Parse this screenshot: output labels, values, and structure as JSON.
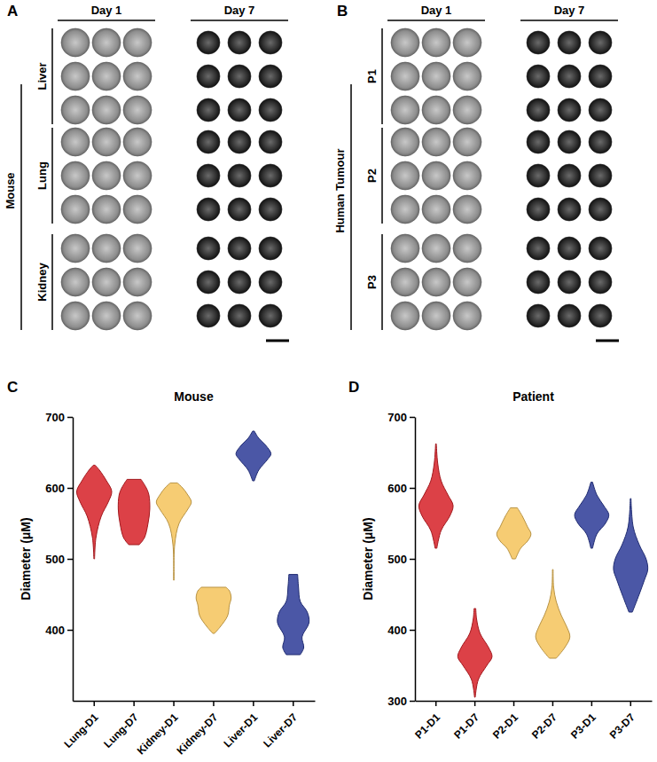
{
  "image_panels": [
    {
      "label": "A",
      "columns": [
        "Day 1",
        "Day 7"
      ],
      "group_label": "Mouse",
      "rows": [
        "Liver",
        "Lung",
        "Kidney"
      ]
    },
    {
      "label": "B",
      "columns": [
        "Day 1",
        "Day 7"
      ],
      "group_label": "Human Tumour",
      "rows": [
        "P1",
        "P2",
        "P3"
      ]
    }
  ],
  "chart_data": [
    {
      "type": "violin",
      "panel_label": "C",
      "title": "Mouse",
      "y_label": "Diameter (μM)",
      "categories": [
        "Lung-D1",
        "Lung-D7",
        "Kidney-D1",
        "Kidney-D7",
        "Liver-D1",
        "Liver-D7"
      ],
      "colors": [
        "#d62027",
        "#d62027",
        "#f5c35b",
        "#f5c35b",
        "#2b3a96",
        "#2b3a96"
      ],
      "ylim": [
        300,
        700
      ],
      "yticks": [
        400,
        500,
        600,
        700
      ],
      "violins": [
        {
          "y": [
            500,
            530,
            560,
            580,
            595,
            610,
            625,
            632
          ],
          "density": [
            0.02,
            0.1,
            0.4,
            0.8,
            1,
            0.7,
            0.3,
            0.05
          ]
        },
        {
          "y": [
            520,
            530,
            550,
            570,
            590,
            600,
            612
          ],
          "density": [
            0.3,
            0.6,
            0.8,
            0.9,
            0.85,
            0.7,
            0.4
          ]
        },
        {
          "y": [
            470,
            520,
            550,
            570,
            580,
            590,
            600,
            607
          ],
          "density": [
            0.02,
            0.05,
            0.3,
            0.8,
            1,
            0.8,
            0.5,
            0.2
          ]
        },
        {
          "y": [
            395,
            405,
            420,
            435,
            445,
            455,
            460
          ],
          "density": [
            0.05,
            0.4,
            0.8,
            0.9,
            1,
            0.9,
            0.7
          ]
        },
        {
          "y": [
            610,
            625,
            640,
            648,
            660,
            670,
            680
          ],
          "density": [
            0.05,
            0.3,
            0.8,
            1,
            0.7,
            0.3,
            0.05
          ]
        },
        {
          "y": [
            365,
            375,
            390,
            410,
            425,
            440,
            460,
            478
          ],
          "density": [
            0.4,
            0.6,
            0.5,
            0.9,
            0.8,
            0.4,
            0.3,
            0.25
          ]
        }
      ]
    },
    {
      "type": "violin",
      "panel_label": "D",
      "title": "Patient",
      "y_label": "Diameter (μM)",
      "categories": [
        "P1-D1",
        "P1-D7",
        "P2-D1",
        "P2-D7",
        "P3-D1",
        "P3-D7"
      ],
      "colors": [
        "#d62027",
        "#d62027",
        "#f5c35b",
        "#f5c35b",
        "#2b3a96",
        "#2b3a96"
      ],
      "ylim": [
        300,
        700
      ],
      "yticks": [
        300,
        400,
        500,
        600,
        700
      ],
      "violins": [
        {
          "y": [
            515,
            540,
            560,
            575,
            590,
            610,
            635,
            662
          ],
          "density": [
            0.05,
            0.3,
            0.8,
            1,
            0.7,
            0.3,
            0.1,
            0.02
          ]
        },
        {
          "y": [
            305,
            330,
            350,
            362,
            375,
            395,
            415,
            430
          ],
          "density": [
            0.02,
            0.2,
            0.7,
            1,
            0.8,
            0.3,
            0.1,
            0.05
          ]
        },
        {
          "y": [
            500,
            515,
            525,
            535,
            545,
            560,
            572
          ],
          "density": [
            0.1,
            0.4,
            0.8,
            1,
            0.8,
            0.5,
            0.2
          ]
        },
        {
          "y": [
            360,
            375,
            390,
            405,
            420,
            440,
            460,
            485
          ],
          "density": [
            0.2,
            0.7,
            1,
            0.8,
            0.5,
            0.2,
            0.05,
            0.02
          ]
        },
        {
          "y": [
            515,
            535,
            550,
            562,
            575,
            590,
            608
          ],
          "density": [
            0.05,
            0.3,
            0.8,
            1,
            0.7,
            0.3,
            0.05
          ]
        },
        {
          "y": [
            425,
            450,
            470,
            485,
            500,
            520,
            545,
            585
          ],
          "density": [
            0.1,
            0.5,
            0.8,
            1,
            0.9,
            0.5,
            0.15,
            0.02
          ]
        }
      ]
    }
  ]
}
